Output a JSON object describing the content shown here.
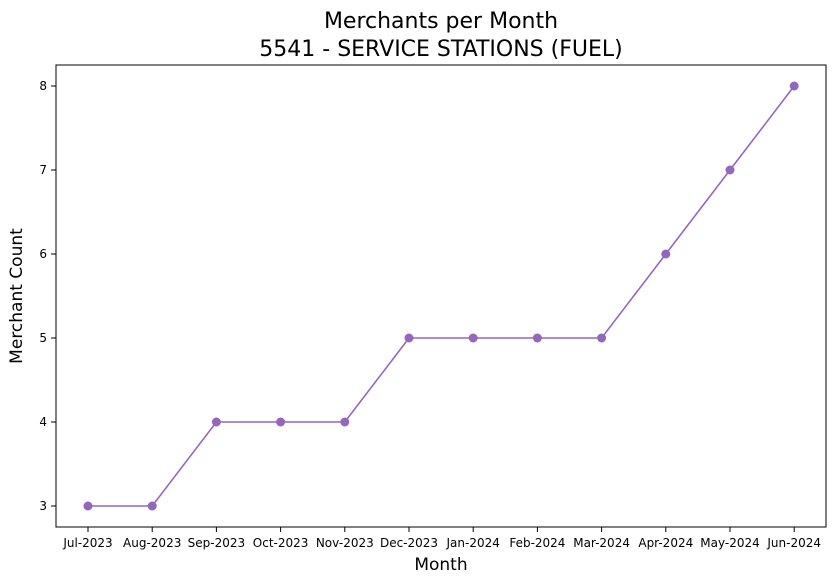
{
  "chart_data": {
    "type": "line",
    "title": "Merchants per Month",
    "subtitle": "5541 - SERVICE STATIONS (FUEL)",
    "xlabel": "Month",
    "ylabel": "Merchant Count",
    "categories": [
      "Jul-2023",
      "Aug-2023",
      "Sep-2023",
      "Oct-2023",
      "Nov-2023",
      "Dec-2023",
      "Jan-2024",
      "Feb-2024",
      "Mar-2024",
      "Apr-2024",
      "May-2024",
      "Jun-2024"
    ],
    "series": [
      {
        "values": [
          3,
          3,
          4,
          4,
          4,
          5,
          5,
          5,
          5,
          6,
          7,
          8
        ],
        "color": "#9467bd"
      }
    ],
    "yticks": [
      3,
      4,
      5,
      6,
      7,
      8
    ],
    "ylim": [
      2.75,
      8.25
    ],
    "grid": false,
    "marker": "circle"
  }
}
